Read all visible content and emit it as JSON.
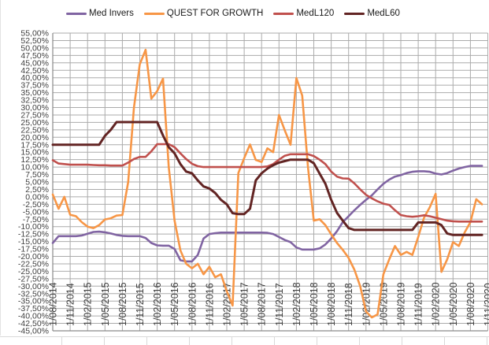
{
  "legend": {
    "items": [
      {
        "label": "Med Invers",
        "color": "#8064A2"
      },
      {
        "label": "QUEST FOR GROWTH",
        "color": "#F79646"
      },
      {
        "label": "MedL120",
        "color": "#C0504D"
      },
      {
        "label": "MedL60",
        "color": "#622423"
      }
    ]
  },
  "chart_data": {
    "type": "line",
    "title": "",
    "xlabel": "",
    "ylabel": "",
    "grid": true,
    "legend_position": "top",
    "x_axis": {
      "start": "1/08/2014",
      "step_months": 1,
      "n_points": 75,
      "label_rotation_deg": 90,
      "labels_quarterly": [
        "1/08/2014",
        "1/11/2014",
        "1/02/2015",
        "1/05/2015",
        "1/08/2015",
        "1/11/2015",
        "1/02/2016",
        "1/05/2016",
        "1/08/2016",
        "1/11/2016",
        "1/02/2017",
        "1/05/2017",
        "1/08/2017",
        "1/11/2017",
        "1/02/2018",
        "1/05/2018",
        "1/08/2018",
        "1/11/2018",
        "1/02/2019",
        "1/05/2019",
        "1/08/2019",
        "1/11/2019",
        "1/02/2020",
        "1/05/2020",
        "1/08/2020",
        "1/11/2020"
      ]
    },
    "y_axis": {
      "min": -45,
      "max": 55,
      "step": 2.5,
      "format": "percent-comma-2dec",
      "example_tick": "55,00%"
    },
    "series": [
      {
        "name": "Med Invers",
        "color": "#8064A2",
        "values": [
          -15.5,
          -13.2,
          -13.2,
          -13.2,
          -13.2,
          -13.0,
          -12.4,
          -11.8,
          -11.7,
          -11.9,
          -12.3,
          -12.8,
          -13.1,
          -13.2,
          -13.2,
          -13.2,
          -13.8,
          -15.5,
          -16.3,
          -16.4,
          -16.4,
          -17.5,
          -21.3,
          -21.7,
          -21.7,
          -19.5,
          -14.0,
          -12.5,
          -12.2,
          -12.0,
          -12.0,
          -12.0,
          -12.0,
          -12.0,
          -12.0,
          -12.0,
          -12.0,
          -12.1,
          -12.5,
          -13.5,
          -14.5,
          -15.2,
          -17.0,
          -17.7,
          -17.7,
          -17.7,
          -17.3,
          -16.0,
          -14.0,
          -11.5,
          -8.5,
          -6.5,
          -4.5,
          -2.7,
          -1.0,
          0.5,
          2.5,
          4.4,
          5.8,
          6.8,
          7.3,
          8.0,
          8.4,
          8.6,
          8.6,
          8.4,
          7.8,
          7.5,
          8.0,
          8.8,
          9.5,
          10.0,
          10.4,
          10.4,
          10.4
        ]
      },
      {
        "name": "QUEST FOR GROWTH",
        "color": "#F79646",
        "values": [
          0.8,
          -4.0,
          0.0,
          -6.0,
          -6.5,
          -8.5,
          -10.0,
          -10.5,
          -9.5,
          -7.6,
          -7.2,
          -6.3,
          -6.1,
          5.0,
          30.0,
          44.5,
          49.4,
          33.0,
          35.5,
          39.7,
          10.0,
          -8.0,
          -18.0,
          -22.5,
          -24.0,
          -22.5,
          -26.0,
          -23.5,
          -27.0,
          -26.0,
          -31.7,
          -36.5,
          8.0,
          13.0,
          17.6,
          12.4,
          11.7,
          16.3,
          15.0,
          27.5,
          22.3,
          17.5,
          39.9,
          34.0,
          10.0,
          -8.0,
          -7.5,
          -9.5,
          -12.6,
          -15.5,
          -17.8,
          -20.5,
          -24.5,
          -30.0,
          -38.5,
          -40.5,
          -39.5,
          -26.0,
          -21.0,
          -16.5,
          -19.5,
          -18.5,
          -19.5,
          -13.5,
          -7.0,
          -3.5,
          1.0,
          -25.2,
          -21.0,
          -15.2,
          -16.5,
          -12.0,
          -8.5,
          -0.8,
          -2.5
        ]
      },
      {
        "name": "MedL120",
        "color": "#C0504D",
        "values": [
          12.3,
          11.2,
          11.0,
          10.8,
          10.8,
          10.8,
          10.8,
          10.7,
          10.6,
          10.6,
          10.5,
          10.5,
          10.5,
          11.5,
          12.7,
          13.4,
          13.4,
          15.3,
          17.7,
          17.7,
          17.7,
          16.7,
          14.6,
          12.7,
          11.1,
          10.3,
          10.0,
          10.0,
          10.0,
          10.0,
          10.0,
          10.0,
          10.0,
          10.0,
          10.0,
          10.0,
          10.0,
          10.2,
          11.0,
          12.5,
          13.8,
          14.3,
          14.3,
          14.3,
          14.3,
          13.7,
          12.5,
          11.0,
          8.5,
          6.8,
          6.2,
          6.1,
          4.5,
          2.5,
          0.7,
          -0.5,
          -1.5,
          -2.3,
          -2.7,
          -4.5,
          -6.1,
          -6.5,
          -6.7,
          -6.5,
          -6.2,
          -6.5,
          -7.0,
          -7.5,
          -8.0,
          -8.2,
          -8.3,
          -8.3,
          -8.3,
          -8.3,
          -8.3
        ]
      },
      {
        "name": "MedL60",
        "color": "#622423",
        "values": [
          17.5,
          17.5,
          17.5,
          17.5,
          17.5,
          17.5,
          17.5,
          17.5,
          17.5,
          20.5,
          22.5,
          25.1,
          25.1,
          25.1,
          25.1,
          25.1,
          25.1,
          25.1,
          25.1,
          20.6,
          16.7,
          14.6,
          11.0,
          8.5,
          7.9,
          5.5,
          3.5,
          2.8,
          1.3,
          -1.0,
          -2.5,
          -5.5,
          -5.8,
          -5.8,
          -4.0,
          5.5,
          7.9,
          9.5,
          10.6,
          11.5,
          12.0,
          12.5,
          12.5,
          12.5,
          12.5,
          11.3,
          7.8,
          4.4,
          -1.0,
          -5.4,
          -8.0,
          -10.5,
          -11.1,
          -11.1,
          -11.1,
          -11.1,
          -11.1,
          -11.1,
          -11.1,
          -11.1,
          -11.1,
          -11.1,
          -11.1,
          -8.6,
          -8.6,
          -8.6,
          -8.6,
          -9.5,
          -12.3,
          -12.8,
          -12.8,
          -12.8,
          -12.8,
          -12.8,
          -12.8
        ]
      }
    ]
  },
  "style": {
    "grid_color": "#ababab",
    "axis_color": "#8a8a8a",
    "tick_text_color": "#3f3f3f",
    "sheet_border_color": "#d9d9d9",
    "background": "#ffffff"
  }
}
